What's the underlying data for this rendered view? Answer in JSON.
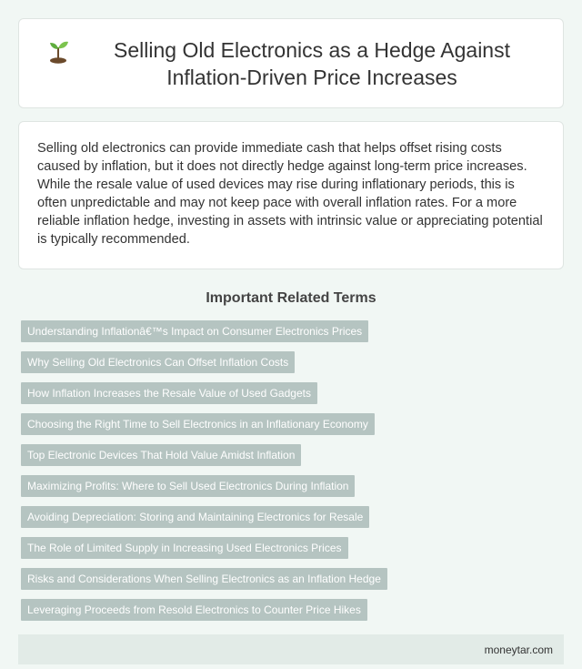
{
  "header": {
    "icon": "sprout-icon",
    "title": "Selling Old Electronics as a Hedge Against Inflation-Driven Price Increases"
  },
  "summary": {
    "text": "Selling old electronics can provide immediate cash that helps offset rising costs caused by inflation, but it does not directly hedge against long-term price increases. While the resale value of used devices may rise during inflationary periods, this is often unpredictable and may not keep pace with overall inflation rates. For a more reliable inflation hedge, investing in assets with intrinsic value or appreciating potential is typically recommended."
  },
  "related": {
    "heading": "Important Related Terms",
    "terms": [
      "Understanding Inflationâ€™s Impact on Consumer Electronics Prices",
      "Why Selling Old Electronics Can Offset Inflation Costs",
      "How Inflation Increases the Resale Value of Used Gadgets",
      "Choosing the Right Time to Sell Electronics in an Inflationary Economy",
      "Top Electronic Devices That Hold Value Amidst Inflation",
      "Maximizing Profits: Where to Sell Used Electronics During Inflation",
      "Avoiding Depreciation: Storing and Maintaining Electronics for Resale",
      "The Role of Limited Supply in Increasing Used Electronics Prices",
      "Risks and Considerations When Selling Electronics as an Inflation Hedge",
      "Leveraging Proceeds from Resold Electronics to Counter Price Hikes"
    ]
  },
  "footer": {
    "site": "moneytar.com"
  },
  "colors": {
    "background": "#f1f7f4",
    "tag": "#b5c4c1",
    "footer": "#e2ebe7"
  }
}
